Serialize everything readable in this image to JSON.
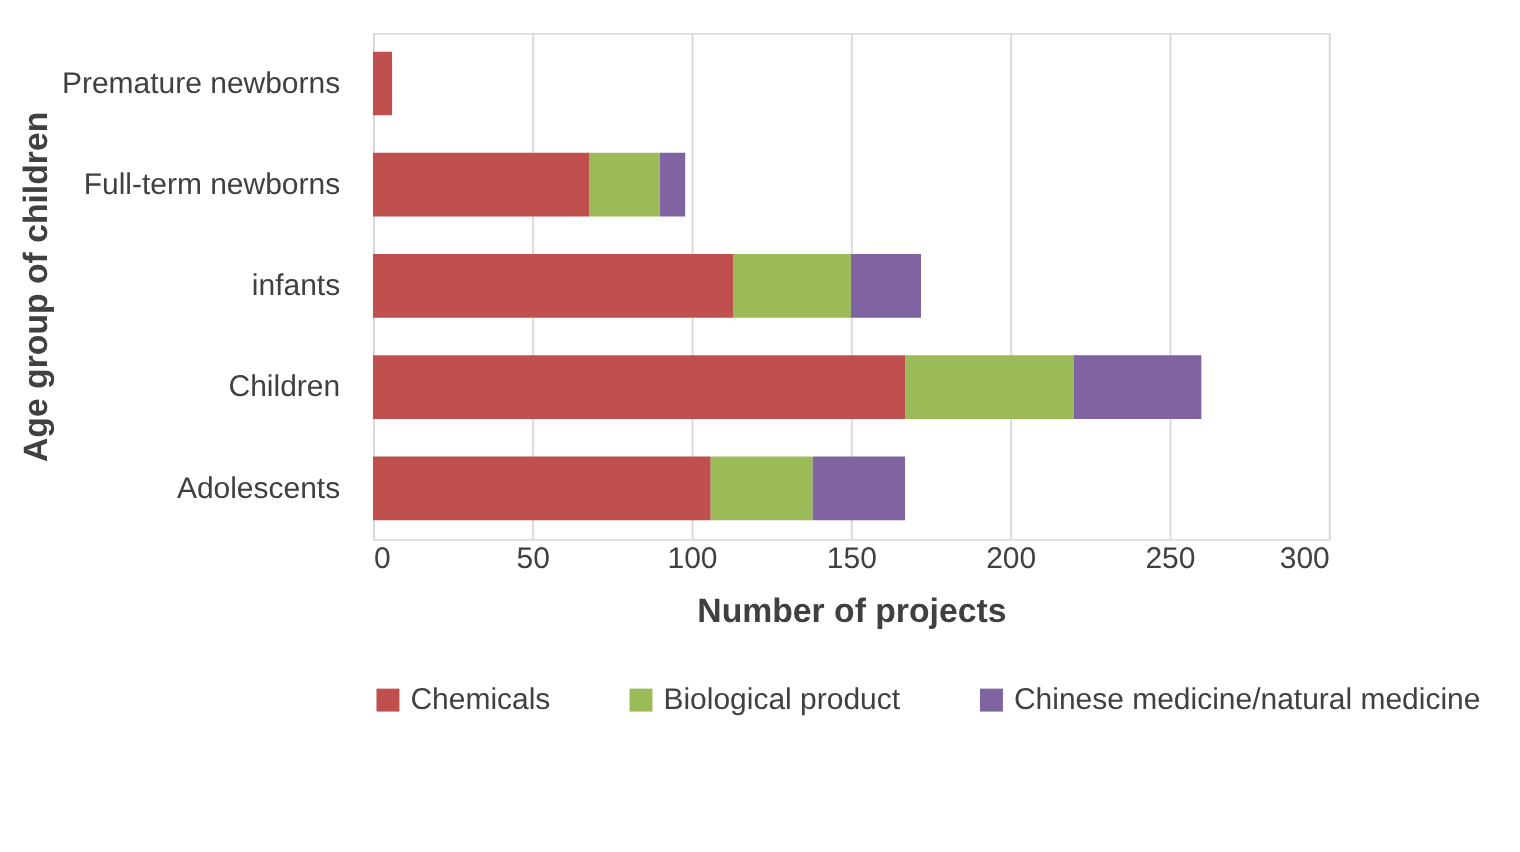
{
  "chart_data": {
    "type": "bar",
    "orientation": "horizontal",
    "stacked": true,
    "categories": [
      "Premature newborns",
      "Full-term newborns",
      "infants",
      "Children",
      "Adolescents"
    ],
    "series": [
      {
        "name": "Chemicals",
        "color": "#c0504d",
        "values": [
          6,
          68,
          113,
          167,
          106
        ]
      },
      {
        "name": "Biological product",
        "color": "#9bbb59",
        "values": [
          0,
          22,
          37,
          53,
          32
        ]
      },
      {
        "name": "Chinese medicine/natural medicine",
        "color": "#8064a2",
        "values": [
          0,
          8,
          22,
          40,
          29
        ]
      }
    ],
    "xlim": [
      0,
      300
    ],
    "xticks": [
      0,
      50,
      100,
      150,
      200,
      250,
      300
    ],
    "xlabel": "Number of projects",
    "ylabel": "Age group of children",
    "grid": "x",
    "legend": "bottom"
  }
}
